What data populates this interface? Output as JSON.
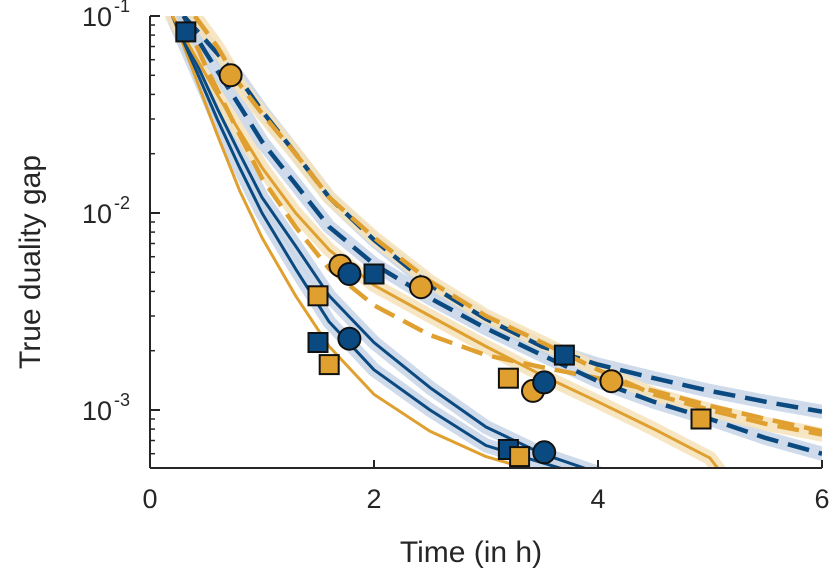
{
  "chart_data": {
    "type": "line",
    "title": "",
    "xlabel": "Time (in h)",
    "ylabel": "True duality gap",
    "xlim": [
      0,
      6
    ],
    "ylim": [
      0.0005,
      0.1
    ],
    "yscale": "log",
    "xticks": [
      0,
      2,
      4,
      6
    ],
    "xtick_labels": [
      "0",
      "2",
      "4",
      "6"
    ],
    "yticks": [
      {
        "value": 0.1,
        "base": "10",
        "exp": "-1"
      },
      {
        "value": 0.01,
        "base": "10",
        "exp": "-2"
      },
      {
        "value": 0.001,
        "base": "10",
        "exp": "-3"
      }
    ],
    "colors": {
      "blue": "#0b4a80",
      "gold": "#e0a030",
      "blue_band": "#c7d5e6",
      "gold_band": "#f6e2ba",
      "axis": "#262626"
    },
    "series": [
      {
        "name": "gold-solid-fast",
        "color": "gold",
        "dash": false,
        "band": false,
        "x": [
          0.2,
          0.4,
          0.6,
          0.8,
          1.0,
          1.3,
          1.6,
          2.0,
          2.5,
          3.0,
          3.5
        ],
        "y": [
          0.1,
          0.05,
          0.025,
          0.013,
          0.0075,
          0.0038,
          0.0021,
          0.0012,
          0.00078,
          0.00058,
          0.00048
        ]
      },
      {
        "name": "blue-solid-fast",
        "color": "blue",
        "dash": false,
        "band": true,
        "x": [
          0.2,
          0.4,
          0.6,
          0.8,
          1.0,
          1.3,
          1.6,
          2.0,
          2.5,
          3.0,
          3.5,
          3.8
        ],
        "y": [
          0.1,
          0.055,
          0.03,
          0.017,
          0.01,
          0.0052,
          0.0028,
          0.0016,
          0.001,
          0.00066,
          0.00054,
          0.00048
        ]
      },
      {
        "name": "blue-solid-mid",
        "color": "blue",
        "dash": false,
        "band": true,
        "x": [
          0.2,
          0.4,
          0.6,
          0.8,
          1.0,
          1.3,
          1.6,
          2.0,
          2.5,
          3.0,
          3.5,
          4.0
        ],
        "y": [
          0.1,
          0.06,
          0.034,
          0.02,
          0.012,
          0.0068,
          0.0038,
          0.0022,
          0.0013,
          0.00082,
          0.0006,
          0.00048
        ]
      },
      {
        "name": "gold-solid-mid",
        "color": "gold",
        "dash": false,
        "band": true,
        "x": [
          0.2,
          0.4,
          0.6,
          0.8,
          1.0,
          1.3,
          1.6,
          2.0,
          2.5,
          3.0,
          3.5,
          4.0,
          4.5,
          5.0,
          5.1
        ],
        "y": [
          0.1,
          0.063,
          0.04,
          0.026,
          0.017,
          0.01,
          0.0065,
          0.0043,
          0.003,
          0.0021,
          0.0015,
          0.0011,
          0.0008,
          0.00057,
          0.00048
        ]
      },
      {
        "name": "gold-dashed-mid",
        "color": "gold",
        "dash": true,
        "band": false,
        "x": [
          0.3,
          0.5,
          0.8,
          1.0,
          1.3,
          1.6,
          2.0,
          2.5,
          3.0,
          3.5,
          4.0,
          4.5,
          5.0,
          5.5,
          6.0
        ],
        "y": [
          0.1,
          0.055,
          0.025,
          0.015,
          0.0085,
          0.0052,
          0.0034,
          0.0024,
          0.0019,
          0.00165,
          0.00145,
          0.00125,
          0.00105,
          0.0009,
          0.00078
        ]
      },
      {
        "name": "blue-dashed-slow",
        "color": "blue",
        "dash": true,
        "band": true,
        "x": [
          0.3,
          0.5,
          0.8,
          1.0,
          1.3,
          1.6,
          2.0,
          2.5,
          3.0,
          3.5,
          4.0,
          4.5,
          5.0,
          5.5,
          6.0
        ],
        "y": [
          0.1,
          0.065,
          0.035,
          0.023,
          0.014,
          0.0085,
          0.0055,
          0.0037,
          0.0026,
          0.0019,
          0.0014,
          0.0011,
          0.0009,
          0.00072,
          0.0006
        ]
      },
      {
        "name": "blue-dashed-slowest",
        "color": "blue",
        "dash": true,
        "band": true,
        "x": [
          0.3,
          0.5,
          0.8,
          1.0,
          1.3,
          1.6,
          2.0,
          2.5,
          3.0,
          3.5,
          4.0,
          4.5,
          5.0,
          5.5,
          6.0
        ],
        "y": [
          0.1,
          0.075,
          0.048,
          0.033,
          0.02,
          0.012,
          0.0073,
          0.0043,
          0.0029,
          0.0021,
          0.0017,
          0.00145,
          0.00125,
          0.0011,
          0.00098
        ]
      },
      {
        "name": "gold-dashed-slowest",
        "color": "gold",
        "dash": true,
        "band": true,
        "x": [
          0.4,
          0.6,
          0.8,
          1.0,
          1.3,
          1.6,
          2.0,
          2.5,
          3.0,
          3.5,
          4.0,
          4.5,
          5.0,
          5.5,
          6.0
        ],
        "y": [
          0.1,
          0.07,
          0.045,
          0.032,
          0.02,
          0.012,
          0.0075,
          0.0045,
          0.003,
          0.0022,
          0.0016,
          0.0012,
          0.001,
          0.00085,
          0.00075
        ]
      }
    ],
    "markers": [
      {
        "shape": "square",
        "color": "blue",
        "x": 0.32,
        "y": 0.083
      },
      {
        "shape": "circle",
        "color": "gold",
        "x": 0.72,
        "y": 0.05
      },
      {
        "shape": "square",
        "color": "gold",
        "x": 1.5,
        "y": 0.0038
      },
      {
        "shape": "square",
        "color": "blue",
        "x": 1.5,
        "y": 0.0022
      },
      {
        "shape": "square",
        "color": "gold",
        "x": 1.6,
        "y": 0.0017
      },
      {
        "shape": "circle",
        "color": "gold",
        "x": 1.7,
        "y": 0.0054
      },
      {
        "shape": "circle",
        "color": "blue",
        "x": 1.78,
        "y": 0.0049
      },
      {
        "shape": "circle",
        "color": "blue",
        "x": 1.78,
        "y": 0.0023
      },
      {
        "shape": "square",
        "color": "blue",
        "x": 2.0,
        "y": 0.0049
      },
      {
        "shape": "circle",
        "color": "gold",
        "x": 2.42,
        "y": 0.0042
      },
      {
        "shape": "square",
        "color": "blue",
        "x": 3.2,
        "y": 0.00063
      },
      {
        "shape": "square",
        "color": "gold",
        "x": 3.3,
        "y": 0.00058
      },
      {
        "shape": "square",
        "color": "gold",
        "x": 3.2,
        "y": 0.00145
      },
      {
        "shape": "circle",
        "color": "gold",
        "x": 3.42,
        "y": 0.00125
      },
      {
        "shape": "circle",
        "color": "blue",
        "x": 3.52,
        "y": 0.00138
      },
      {
        "shape": "circle",
        "color": "blue",
        "x": 3.52,
        "y": 0.00061
      },
      {
        "shape": "square",
        "color": "blue",
        "x": 3.7,
        "y": 0.0019
      },
      {
        "shape": "circle",
        "color": "gold",
        "x": 4.12,
        "y": 0.0014
      },
      {
        "shape": "square",
        "color": "gold",
        "x": 4.92,
        "y": 0.0009
      }
    ]
  }
}
